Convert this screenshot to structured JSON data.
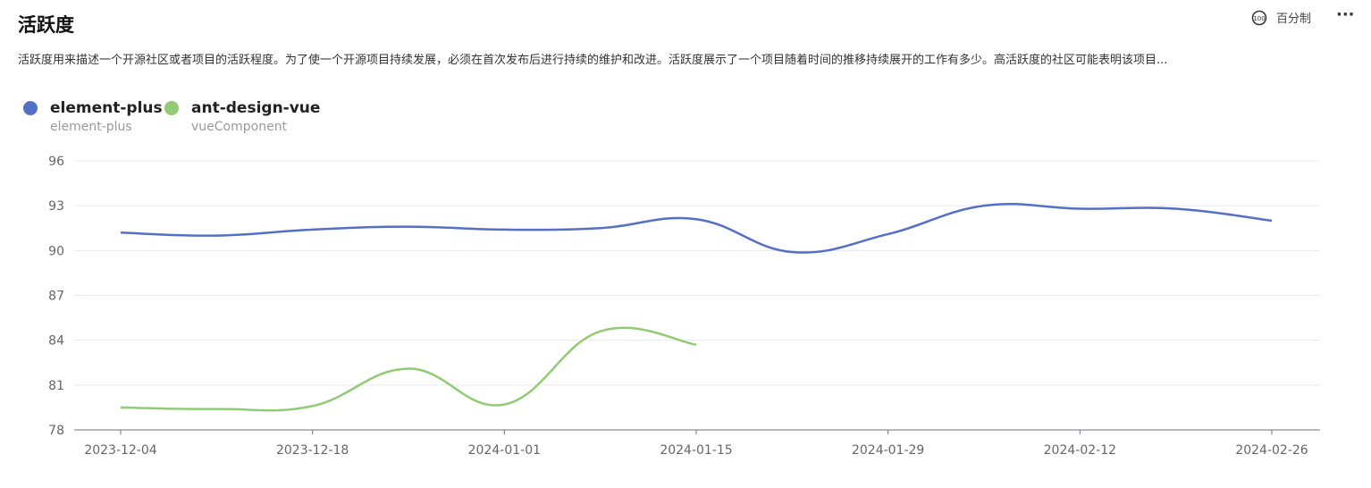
{
  "header": {
    "title": "活跃度",
    "description": "活跃度用来描述一个开源社区或者项目的活跃程度。为了使一个开源项目持续发展，必须在首次发布后进行持续的维护和改进。活跃度展示了一个项目随着时间的推移持续展开的工作有多少。高活跃度的社区可能表明该项目...",
    "scale_toggle": "百分制"
  },
  "chart_data": {
    "type": "line",
    "x": [
      "2023-12-04",
      "2023-12-11",
      "2023-12-18",
      "2023-12-25",
      "2024-01-01",
      "2024-01-08",
      "2024-01-15",
      "2024-01-22",
      "2024-01-29",
      "2024-02-05",
      "2024-02-12",
      "2024-02-19",
      "2024-02-26"
    ],
    "xlim": [
      "2023-12-04",
      "2024-02-26"
    ],
    "xticks": [
      "2023-12-04",
      "2023-12-18",
      "2024-01-01",
      "2024-01-15",
      "2024-01-29",
      "2024-02-12",
      "2024-02-26"
    ],
    "ylim": [
      78,
      96
    ],
    "yticks": [
      78,
      81,
      84,
      87,
      90,
      93,
      96
    ],
    "grid": true,
    "series": [
      {
        "name": "element-plus",
        "subtitle": "element-plus",
        "color": "#5470c6",
        "values": [
          91.2,
          91.0,
          91.4,
          91.6,
          91.4,
          91.5,
          92.1,
          89.9,
          91.1,
          93.0,
          92.8,
          92.8,
          92.0
        ]
      },
      {
        "name": "ant-design-vue",
        "subtitle": "vueComponent",
        "color": "#91cc75",
        "values": [
          79.5,
          79.4,
          79.6,
          82.1,
          79.7,
          84.6,
          83.7,
          null,
          null,
          null,
          null,
          null,
          null
        ]
      }
    ]
  }
}
